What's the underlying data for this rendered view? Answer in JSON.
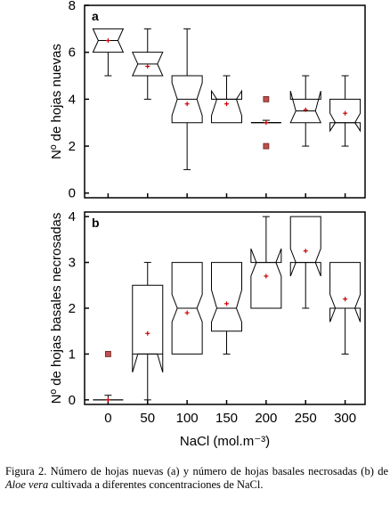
{
  "chart_data": [
    {
      "type": "boxplot",
      "panel_label": "a",
      "ylabel": "Nº de hojas nuevas",
      "xlabel": "",
      "categories": [
        "0",
        "50",
        "100",
        "150",
        "200",
        "250",
        "300"
      ],
      "ylim": [
        -0.2,
        8
      ],
      "yticks": [
        "0",
        "2",
        "4",
        "6",
        "8"
      ],
      "boxes": [
        {
          "min": 5,
          "q1": 6,
          "median": 6.5,
          "q3": 7,
          "max": 7,
          "notch_low": 6.0,
          "notch_high": 7.0,
          "mean": 6.5,
          "outliers": []
        },
        {
          "min": 4,
          "q1": 5,
          "median": 5.5,
          "q3": 6,
          "max": 7,
          "notch_low": 5.0,
          "notch_high": 6.0,
          "mean": 5.4,
          "outliers": []
        },
        {
          "min": 1,
          "q1": 3,
          "median": 4,
          "q3": 5,
          "max": 7,
          "notch_low": 3.3,
          "notch_high": 4.7,
          "mean": 3.8,
          "outliers": []
        },
        {
          "min": 3,
          "q1": 3,
          "median": 4,
          "q3": 4,
          "max": 5,
          "notch_low": 3.3,
          "notch_high": 4.5,
          "mean": 3.8,
          "outliers": []
        },
        {
          "min": 3,
          "q1": 3,
          "median": 3,
          "q3": 3,
          "max": 3.1,
          "notch_low": 3.0,
          "notch_high": 3.0,
          "mean": 3.0,
          "outliers": [
            4,
            2
          ]
        },
        {
          "min": 2,
          "q1": 3,
          "median": 3.5,
          "q3": 4,
          "max": 5,
          "notch_low": 3.0,
          "notch_high": 4.4,
          "mean": 3.55,
          "outliers": []
        },
        {
          "min": 2,
          "q1": 3,
          "median": 3,
          "q3": 4,
          "max": 5,
          "notch_low": 2.6,
          "notch_high": 3.4,
          "mean": 3.4,
          "outliers": []
        }
      ]
    },
    {
      "type": "boxplot",
      "panel_label": "b",
      "ylabel": "Nº de hojas basales necrosadas",
      "xlabel": "NaCl (mol.m⁻³)",
      "categories": [
        "0",
        "50",
        "100",
        "150",
        "200",
        "250",
        "300"
      ],
      "ylim": [
        -0.1,
        4.1
      ],
      "yticks": [
        "0",
        "1",
        "2",
        "3",
        "4"
      ],
      "boxes": [
        {
          "min": 0,
          "q1": 0,
          "median": 0,
          "q3": 0,
          "max": 0.1,
          "notch_low": 0,
          "notch_high": 0,
          "mean": 0.0,
          "outliers": [
            1
          ]
        },
        {
          "min": 0,
          "q1": 1,
          "median": 1,
          "q3": 2.5,
          "max": 3,
          "notch_low": 0.6,
          "notch_high": 1.0,
          "mean": 1.45,
          "outliers": []
        },
        {
          "min": 1,
          "q1": 1,
          "median": 2,
          "q3": 3,
          "max": 3,
          "notch_low": 1.7,
          "notch_high": 2.3,
          "mean": 1.9,
          "outliers": []
        },
        {
          "min": 1,
          "q1": 1.5,
          "median": 2,
          "q3": 3,
          "max": 3,
          "notch_low": 1.7,
          "notch_high": 2.4,
          "mean": 2.1,
          "outliers": []
        },
        {
          "min": 2,
          "q1": 2,
          "median": 3,
          "q3": 3,
          "max": 4,
          "notch_low": 2.7,
          "notch_high": 3.3,
          "mean": 2.7,
          "outliers": []
        },
        {
          "min": 2,
          "q1": 3,
          "median": 3,
          "q3": 4,
          "max": 4,
          "notch_low": 2.7,
          "notch_high": 3.3,
          "mean": 3.25,
          "outliers": []
        },
        {
          "min": 1,
          "q1": 2,
          "median": 2,
          "q3": 3,
          "max": 3,
          "notch_low": 1.7,
          "notch_high": 2.3,
          "mean": 2.2,
          "outliers": []
        }
      ]
    }
  ],
  "caption": {
    "prefix": "Figura 2. Número de hojas nuevas (a) y número de hojas basales necrosadas (b) de ",
    "species": "Aloe vera",
    "suffix": " cultivada a diferentes concentraciones de NaCl."
  },
  "colors": {
    "mean_marker": "#cc0000",
    "outlier_fill": "#c0504d",
    "box_stroke": "#000000"
  }
}
